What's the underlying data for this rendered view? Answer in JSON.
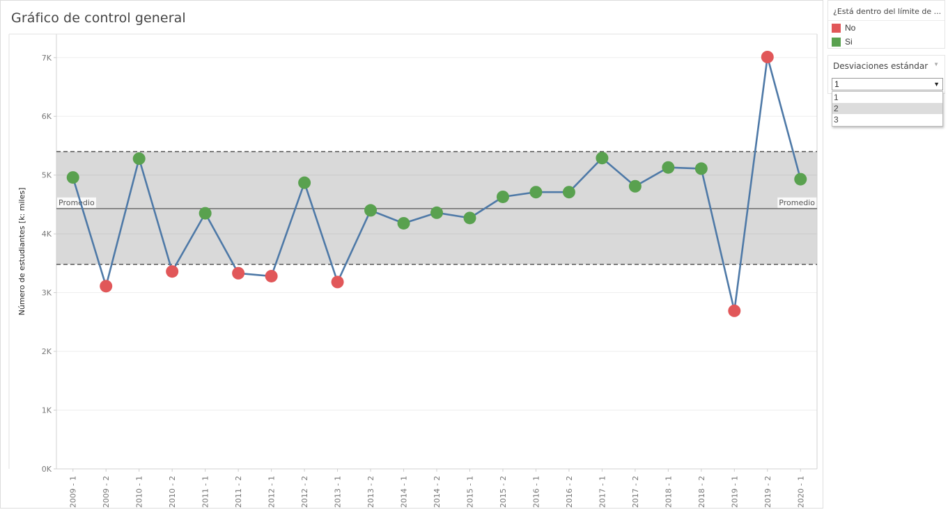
{
  "chart_title": "Gráfico de control general",
  "chart_data": {
    "type": "line",
    "ylabel": "Número de estudiantes [k: miles]",
    "ylim": [
      0,
      7400
    ],
    "yticks": [
      0,
      1000,
      2000,
      3000,
      4000,
      5000,
      6000,
      7000
    ],
    "ytick_labels": [
      "0K",
      "1K",
      "2K",
      "3K",
      "4K",
      "5K",
      "6K",
      "7K"
    ],
    "categories": [
      "2009 - 1",
      "2009 - 2",
      "2010 - 1",
      "2010 - 2",
      "2011 - 1",
      "2011 - 2",
      "2012 - 1",
      "2012 - 2",
      "2013 - 1",
      "2013 - 2",
      "2014 - 1",
      "2014 - 2",
      "2015 - 1",
      "2015 - 2",
      "2016 - 1",
      "2016 - 2",
      "2017 - 1",
      "2017 - 2",
      "2018 - 1",
      "2018 - 2",
      "2019 - 1",
      "2019 - 2",
      "2020 - 1"
    ],
    "values": [
      4960,
      3110,
      5280,
      3360,
      4350,
      3330,
      3280,
      4870,
      3180,
      4400,
      4180,
      4360,
      4270,
      4630,
      4710,
      4710,
      5290,
      4810,
      5130,
      5110,
      2690,
      7010,
      4930
    ],
    "within_limit": [
      "Si",
      "No",
      "Si",
      "No",
      "Si",
      "No",
      "No",
      "Si",
      "No",
      "Si",
      "Si",
      "Si",
      "Si",
      "Si",
      "Si",
      "Si",
      "Si",
      "Si",
      "Si",
      "Si",
      "No",
      "No",
      "Si"
    ],
    "mean": 4430,
    "upper_limit": 5400,
    "lower_limit": 3480,
    "mean_label": "Promedio",
    "line_color": "#4e79a7",
    "band_color": "#d9d9d9"
  },
  "legend": {
    "title": "¿Está dentro del límite de ...",
    "items": [
      {
        "label": "No",
        "color": "#e15759"
      },
      {
        "label": "Si",
        "color": "#59a14f"
      }
    ]
  },
  "parameter": {
    "title": "Desviaciones estándar",
    "selected": "1",
    "options": [
      "1",
      "2",
      "3"
    ],
    "hovered_option": "2"
  }
}
